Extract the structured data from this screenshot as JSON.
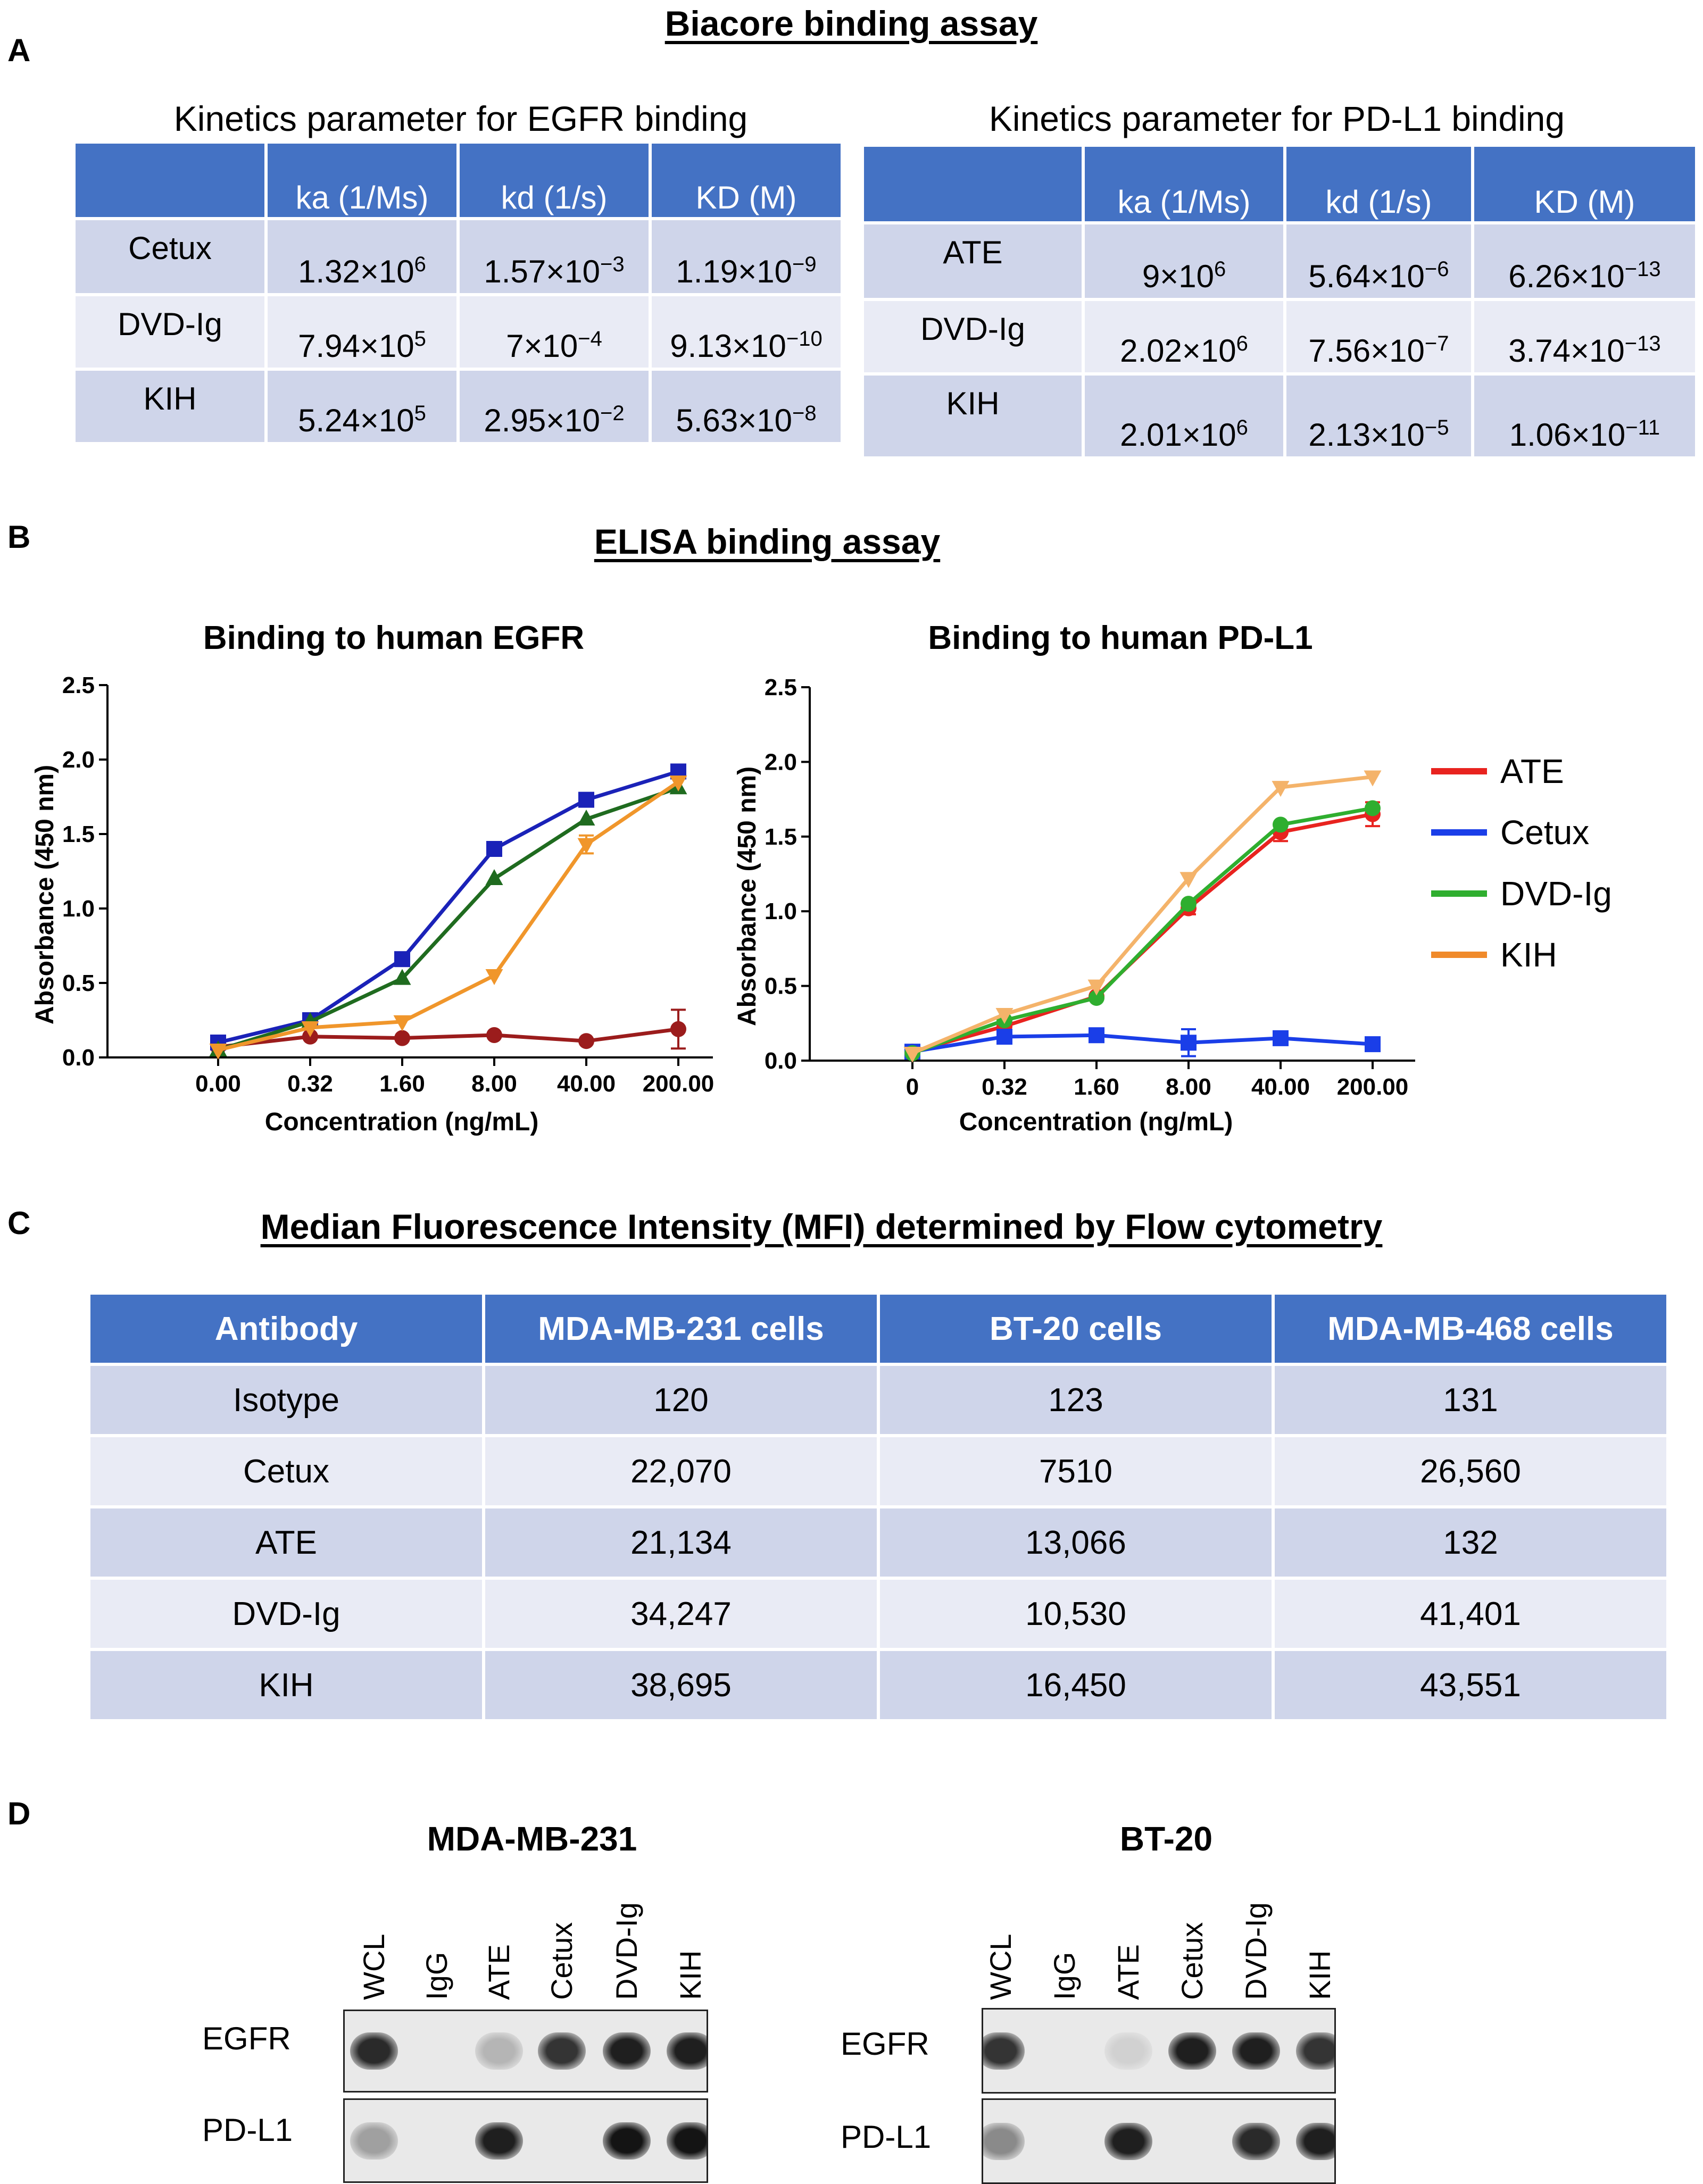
{
  "panel_letters": {
    "a": "A",
    "b": "B",
    "c": "C",
    "d": "D"
  },
  "biacore": {
    "title": "Biacore binding assay",
    "egfr_table": {
      "title": "Kinetics parameter for EGFR binding",
      "headers": [
        "",
        "ka (1/Ms)",
        "kd (1/s)",
        "KD (M)"
      ],
      "rows": [
        {
          "label": "Cetux",
          "ka": {
            "m": "1.32×10",
            "e": "6"
          },
          "kd": {
            "m": "1.57×10",
            "e": "−3"
          },
          "KD": {
            "m": "1.19×10",
            "e": "−9"
          }
        },
        {
          "label": "DVD-Ig",
          "ka": {
            "m": "7.94×10",
            "e": "5"
          },
          "kd": {
            "m": "7×10",
            "e": "−4"
          },
          "KD": {
            "m": "9.13×10",
            "e": "−10"
          }
        },
        {
          "label": "KIH",
          "ka": {
            "m": "5.24×10",
            "e": "5"
          },
          "kd": {
            "m": "2.95×10",
            "e": "−2"
          },
          "KD": {
            "m": "5.63×10",
            "e": "−8"
          }
        }
      ]
    },
    "pdl1_table": {
      "title": "Kinetics parameter for PD-L1 binding",
      "headers": [
        "",
        "ka (1/Ms)",
        "kd (1/s)",
        "KD (M)"
      ],
      "rows": [
        {
          "label": "ATE",
          "ka": {
            "m": "9×10",
            "e": "6"
          },
          "kd": {
            "m": "5.64×10",
            "e": "−6"
          },
          "KD": {
            "m": "6.26×10",
            "e": "−13"
          }
        },
        {
          "label": "DVD-Ig",
          "ka": {
            "m": "2.02×10",
            "e": "6"
          },
          "kd": {
            "m": "7.56×10",
            "e": "−7"
          },
          "KD": {
            "m": "3.74×10",
            "e": "−13"
          }
        },
        {
          "label": "KIH",
          "ka": {
            "m": "2.01×10",
            "e": "6"
          },
          "kd": {
            "m": "2.13×10",
            "e": "−5"
          },
          "KD": {
            "m": "1.06×10",
            "e": "−11"
          }
        }
      ]
    }
  },
  "elisa": {
    "title": "ELISA binding assay"
  },
  "chart_data": [
    {
      "type": "line",
      "title": "Binding to human EGFR",
      "xlabel": "Concentration (ng/mL)",
      "ylabel": "Absorbance (450 nm)",
      "categories": [
        "0.00",
        "0.32",
        "1.60",
        "8.00",
        "40.00",
        "200.00"
      ],
      "ylim": [
        0,
        2.5
      ],
      "yticks": [
        "0.0",
        "0.5",
        "1.0",
        "1.5",
        "2.0",
        "2.5"
      ],
      "series": [
        {
          "name": "ATE",
          "color": "#9b1c1c",
          "marker": "circle",
          "values": [
            0.07,
            0.14,
            0.13,
            0.15,
            0.11,
            0.19
          ],
          "errors": [
            0,
            0,
            0,
            0,
            0,
            0.13
          ]
        },
        {
          "name": "Cetux",
          "color": "#1a22b8",
          "marker": "square",
          "values": [
            0.1,
            0.25,
            0.66,
            1.4,
            1.73,
            1.92
          ],
          "errors": [
            0,
            0,
            0,
            0,
            0,
            0
          ]
        },
        {
          "name": "DVD-Ig",
          "color": "#1f6b1f",
          "marker": "triangle-up",
          "values": [
            0.05,
            0.24,
            0.53,
            1.2,
            1.6,
            1.81
          ],
          "errors": [
            0,
            0,
            0,
            0,
            0,
            0
          ]
        },
        {
          "name": "KIH",
          "color": "#f0962b",
          "marker": "triangle-down",
          "values": [
            0.05,
            0.2,
            0.24,
            0.55,
            1.43,
            1.85
          ],
          "errors": [
            0,
            0,
            0,
            0,
            0.06,
            0
          ]
        }
      ]
    },
    {
      "type": "line",
      "title": "Binding to human PD-L1",
      "xlabel": "Concentration (ng/mL)",
      "ylabel": "Absorbance (450 nm)",
      "categories": [
        "0",
        "0.32",
        "1.60",
        "8.00",
        "40.00",
        "200.00"
      ],
      "ylim": [
        0,
        2.5
      ],
      "yticks": [
        "0.0",
        "0.5",
        "1.0",
        "1.5",
        "2.0",
        "2.5"
      ],
      "series": [
        {
          "name": "ATE",
          "color": "#e8231f",
          "marker": "circle",
          "values": [
            0.06,
            0.23,
            0.43,
            1.02,
            1.53,
            1.65
          ],
          "errors": [
            0,
            0,
            0,
            0.04,
            0.06,
            0.08
          ]
        },
        {
          "name": "Cetux",
          "color": "#1a3ee8",
          "marker": "square",
          "values": [
            0.06,
            0.16,
            0.17,
            0.12,
            0.15,
            0.11
          ],
          "errors": [
            0,
            0,
            0,
            0.09,
            0,
            0
          ]
        },
        {
          "name": "DVD-Ig",
          "color": "#2fae2f",
          "marker": "circle",
          "values": [
            0.05,
            0.27,
            0.42,
            1.05,
            1.58,
            1.69
          ],
          "errors": [
            0,
            0,
            0,
            0,
            0,
            0
          ]
        },
        {
          "name": "KIH",
          "color": "#f4b36a",
          "marker": "triangle-down",
          "values": [
            0.05,
            0.31,
            0.5,
            1.22,
            1.83,
            1.9
          ],
          "errors": [
            0,
            0,
            0,
            0,
            0,
            0
          ]
        }
      ]
    }
  ],
  "legend": [
    {
      "label": "ATE",
      "color": "#e8231f"
    },
    {
      "label": "Cetux",
      "color": "#1a3ee8"
    },
    {
      "label": "DVD-Ig",
      "color": "#2fae2f"
    },
    {
      "label": "KIH",
      "color": "#f08a2a"
    }
  ],
  "mfi": {
    "title": "Median Fluorescence Intensity (MFI) determined by Flow cytometry",
    "headers": [
      "Antibody",
      "MDA-MB-231 cells",
      "BT-20 cells",
      "MDA-MB-468 cells"
    ],
    "rows": [
      [
        "Isotype",
        "120",
        "123",
        "131"
      ],
      [
        "Cetux",
        "22,070",
        "7510",
        "26,560"
      ],
      [
        "ATE",
        "21,134",
        "13,066",
        "132"
      ],
      [
        "DVD-Ig",
        "34,247",
        "10,530",
        "41,401"
      ],
      [
        "KIH",
        "38,695",
        "16,450",
        "43,551"
      ]
    ]
  },
  "blots": {
    "lanes": [
      "WCL",
      "IgG",
      "ATE",
      "Cetux",
      "DVD-Ig",
      "KIH"
    ],
    "rows": [
      "EGFR",
      "PD-L1"
    ],
    "panels": [
      {
        "title": "MDA-MB-231",
        "egfr": [
          0.9,
          0,
          0.25,
          0.85,
          0.95,
          0.95
        ],
        "pdl1": [
          0.35,
          0,
          0.95,
          0,
          1.0,
          1.0
        ]
      },
      {
        "title": "BT-20",
        "egfr": [
          0.85,
          0,
          0.12,
          0.95,
          0.95,
          0.85
        ],
        "pdl1": [
          0.45,
          0,
          0.95,
          0,
          0.9,
          0.95
        ]
      }
    ]
  }
}
